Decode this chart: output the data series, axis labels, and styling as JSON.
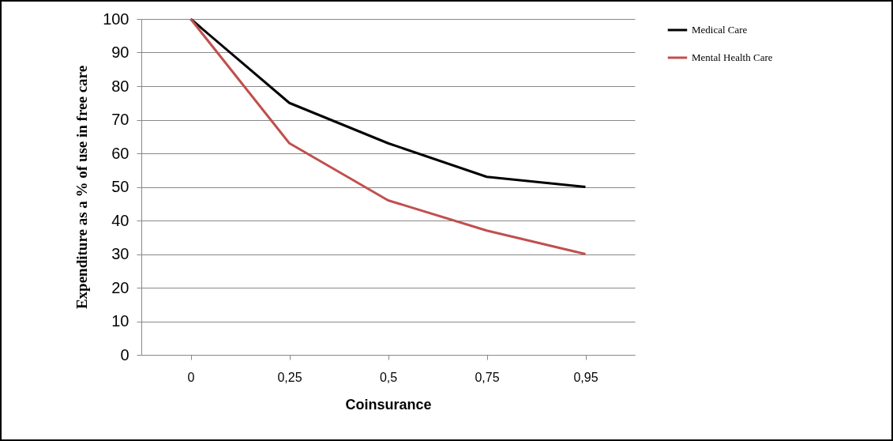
{
  "chart_data": {
    "type": "line",
    "xlabel": "Coinsurance",
    "ylabel": "Expenditure as a % of use in free care",
    "categories": [
      "0",
      "0,25",
      "0,5",
      "0,75",
      "0,95"
    ],
    "series": [
      {
        "name": "Medical Care",
        "color": "#000000",
        "values": [
          100,
          75,
          63,
          53,
          50
        ]
      },
      {
        "name": "Mental Health Care",
        "color": "#c0504d",
        "values": [
          100,
          63,
          46,
          37,
          30
        ]
      }
    ],
    "ylim": [
      0,
      100
    ],
    "yticks": [
      0,
      10,
      20,
      30,
      40,
      50,
      60,
      70,
      80,
      90,
      100
    ],
    "grid": "y",
    "legend": "right",
    "marker": "none",
    "line_style": "solid"
  }
}
